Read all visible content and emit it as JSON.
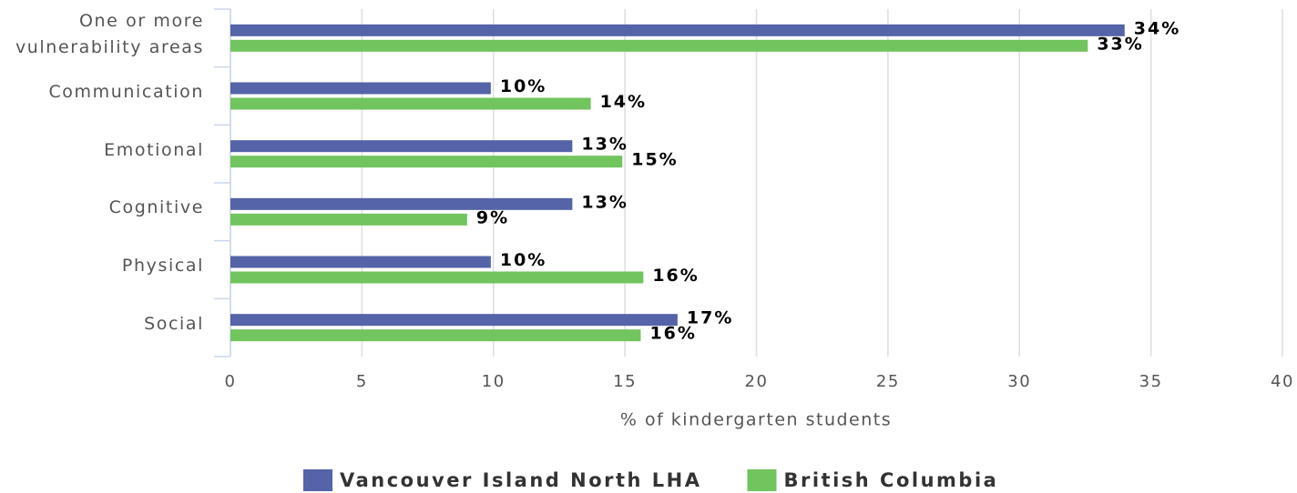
{
  "chart_data": {
    "type": "bar",
    "orientation": "horizontal",
    "categories": [
      "One or more vulnerability areas",
      "Communication",
      "Emotional",
      "Cognitive",
      "Physical",
      "Social"
    ],
    "series": [
      {
        "name": "Vancouver Island North LHA",
        "color": "#5563a8",
        "values": [
          34.0,
          9.9,
          13.0,
          13.0,
          9.9,
          17.0
        ],
        "value_labels": [
          "34%",
          "10%",
          "13%",
          "13%",
          "10%",
          "17%"
        ]
      },
      {
        "name": "British Columbia",
        "color": "#71c45e",
        "values": [
          32.6,
          13.7,
          14.9,
          9.0,
          15.7,
          15.6
        ],
        "value_labels": [
          "33%",
          "14%",
          "15%",
          "9%",
          "16%",
          "16%"
        ]
      }
    ],
    "xlabel": "% of kindergarten students",
    "xlim": [
      0,
      40
    ],
    "xticks": [
      0,
      5,
      10,
      15,
      20,
      25,
      30,
      35,
      40
    ],
    "grid": true,
    "legend": "bottom"
  }
}
